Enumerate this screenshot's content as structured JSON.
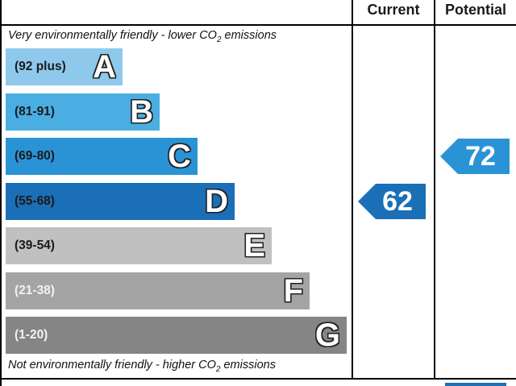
{
  "chart_data": {
    "type": "table",
    "columns": {
      "current": "Current",
      "potential": "Potential"
    },
    "top_note": {
      "text": "Very environmentally friendly - lower CO",
      "sub": "2",
      "tail": " emissions"
    },
    "bottom_note": {
      "text": "Not environmentally friendly - higher CO",
      "sub": "2",
      "tail": " emissions"
    },
    "bands": [
      {
        "range": "(92 plus)",
        "letter": "A",
        "min": 92,
        "max": 100,
        "color": "#8ec9ec",
        "text_color": "#1a1a1a"
      },
      {
        "range": "(81-91)",
        "letter": "B",
        "min": 81,
        "max": 91,
        "color": "#4aaee2",
        "text_color": "#1a1a1a"
      },
      {
        "range": "(69-80)",
        "letter": "C",
        "min": 69,
        "max": 80,
        "color": "#2a93d6",
        "text_color": "#1a1a1a"
      },
      {
        "range": "(55-68)",
        "letter": "D",
        "min": 55,
        "max": 68,
        "color": "#1a6fb7",
        "text_color": "#1a1a1a"
      },
      {
        "range": "(39-54)",
        "letter": "E",
        "min": 39,
        "max": 54,
        "color": "#c0c0c0",
        "text_color": "#1a1a1a"
      },
      {
        "range": "(21-38)",
        "letter": "F",
        "min": 21,
        "max": 38,
        "color": "#a4a4a4",
        "text_color": "#f2f2f2"
      },
      {
        "range": "(1-20)",
        "letter": "G",
        "min": 1,
        "max": 20,
        "color": "#858585",
        "text_color": "#f2f2f2"
      }
    ],
    "current": {
      "value": 62,
      "band": "D",
      "color": "#1a6fb7"
    },
    "potential": {
      "value": 72,
      "band": "C",
      "color": "#2a93d6"
    }
  }
}
